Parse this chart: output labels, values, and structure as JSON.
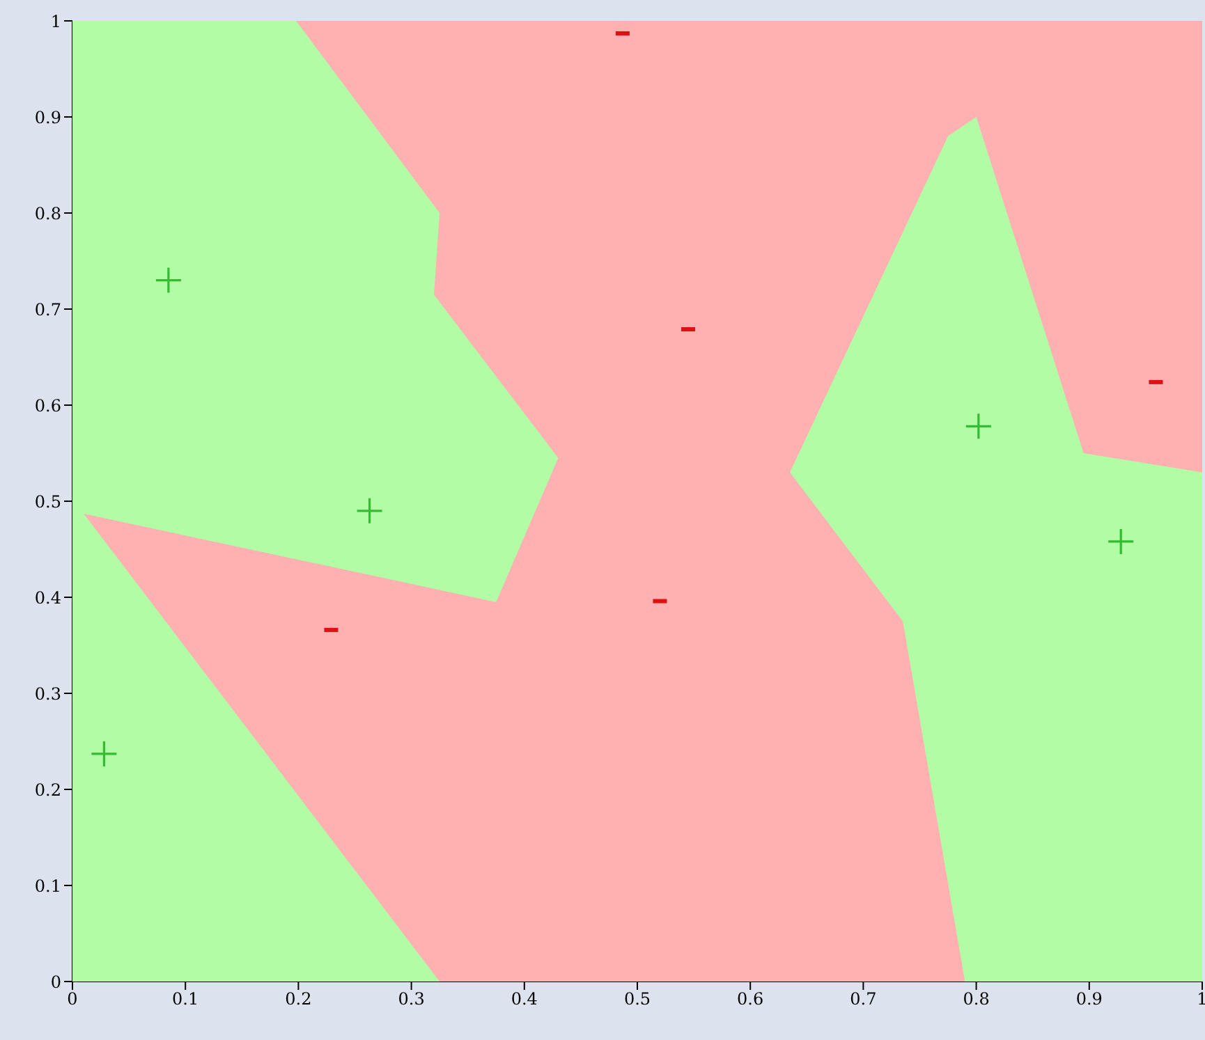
{
  "chart_data": {
    "type": "scatter",
    "xlim": [
      0,
      1
    ],
    "ylim": [
      0,
      1
    ],
    "xticks": [
      0,
      0.1,
      0.2,
      0.3,
      0.4,
      0.5,
      0.6,
      0.7,
      0.8,
      0.9,
      1
    ],
    "yticks": [
      0,
      0.1,
      0.2,
      0.3,
      0.4,
      0.5,
      0.6,
      0.7,
      0.8,
      0.9,
      1
    ],
    "grid": false,
    "legend": false,
    "series": [
      {
        "type": "area",
        "color": "#b3fca6",
        "x": [
          0,
          1,
          1,
          0
        ],
        "values": [
          0,
          0,
          1,
          1
        ]
      },
      {
        "type": "area",
        "color": "#ffb0b0",
        "x": [
          0.198,
          1,
          1,
          0.895,
          0.8,
          0.775,
          0.635,
          0.735,
          0.79,
          0.325,
          0.01,
          0.375,
          0.43,
          0.32,
          0.325
        ],
        "values": [
          1,
          1,
          0.53,
          0.55,
          0.9,
          0.88,
          0.53,
          0.375,
          0,
          0,
          0.487,
          0.395,
          0.545,
          0.715,
          0.8
        ]
      },
      {
        "type": "scatter",
        "color": "#33bb33",
        "marker": "cross",
        "x": [
          0.085,
          0.263,
          0.028,
          0.802,
          0.928
        ],
        "values": [
          0.73,
          0.49,
          0.237,
          0.578,
          0.458
        ]
      },
      {
        "type": "scatter",
        "color": "#dd1111",
        "x": [
          0.487,
          0.545,
          0.959,
          0.52,
          0.229
        ],
        "values": [
          0.987,
          0.679,
          0.624,
          0.396,
          0.366
        ]
      }
    ]
  }
}
